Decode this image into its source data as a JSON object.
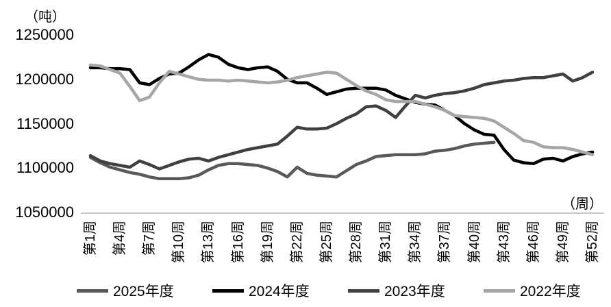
{
  "chart_data": {
    "type": "line",
    "title": "",
    "y_axis_unit_label": "（吨）",
    "x_axis_unit_label": "（周）",
    "y_ticks": [
      1050000,
      1100000,
      1150000,
      1200000,
      1250000
    ],
    "ylim": [
      1050000,
      1250000
    ],
    "weeks_total": 52,
    "x_tick_weeks": [
      1,
      4,
      7,
      10,
      13,
      16,
      19,
      22,
      25,
      28,
      31,
      34,
      37,
      40,
      43,
      46,
      49,
      52
    ],
    "x_tick_labels": [
      "第1周",
      "第4周",
      "第7周",
      "第10周",
      "第13周",
      "第16周",
      "第19周",
      "第22周",
      "第25周",
      "第28周",
      "第31周",
      "第34周",
      "第37周",
      "第40周",
      "第43周",
      "第46周",
      "第49周",
      "第52周"
    ],
    "grid": false,
    "legend_position": "bottom",
    "series": [
      {
        "name": "2025年度",
        "color": "#595959",
        "start_week": 1,
        "values": [
          1112000,
          1106000,
          1101000,
          1098000,
          1095000,
          1093000,
          1090000,
          1088000,
          1088000,
          1088000,
          1089000,
          1092000,
          1098000,
          1103000,
          1105000,
          1105000,
          1104000,
          1103000,
          1100000,
          1096000,
          1090000,
          1101000,
          1094000,
          1092000,
          1091000,
          1090000,
          1097000,
          1104000,
          1108000,
          1113000,
          1114000,
          1115000,
          1115000,
          1115000,
          1116000,
          1119000,
          1120000,
          1122000,
          1125000,
          1127000,
          1128000,
          1129000
        ]
      },
      {
        "name": "2024年度",
        "color": "#000000",
        "start_week": 1,
        "values": [
          1213000,
          1213000,
          1212000,
          1212000,
          1211000,
          1196000,
          1194000,
          1201000,
          1206000,
          1207000,
          1214000,
          1222000,
          1228000,
          1225000,
          1217000,
          1213000,
          1211000,
          1213000,
          1214000,
          1209000,
          1200000,
          1196000,
          1196000,
          1190000,
          1183000,
          1186000,
          1189000,
          1190000,
          1190000,
          1190000,
          1188000,
          1182000,
          1178000,
          1174000,
          1172000,
          1171000,
          1165000,
          1159000,
          1150000,
          1143000,
          1138000,
          1137000,
          1121000,
          1109000,
          1106000,
          1105000,
          1110000,
          1111000,
          1108000,
          1113000,
          1116000,
          1118000
        ]
      },
      {
        "name": "2023年度",
        "color": "#404040",
        "start_week": 1,
        "values": [
          1114000,
          1108000,
          1105000,
          1103000,
          1101000,
          1108000,
          1104000,
          1099000,
          1103000,
          1107000,
          1110000,
          1111000,
          1108000,
          1112000,
          1115000,
          1118000,
          1121000,
          1123000,
          1125000,
          1127000,
          1136000,
          1146000,
          1144000,
          1144000,
          1145000,
          1150000,
          1156000,
          1161000,
          1169000,
          1170000,
          1165000,
          1157000,
          1170000,
          1182000,
          1179000,
          1182000,
          1184000,
          1185000,
          1187000,
          1190000,
          1194000,
          1196000,
          1198000,
          1199000,
          1201000,
          1202000,
          1202000,
          1204000,
          1206000,
          1198000,
          1202000,
          1208000
        ]
      },
      {
        "name": "2022年度",
        "color": "#a6a6a6",
        "start_week": 1,
        "values": [
          1216000,
          1215000,
          1211000,
          1207000,
          1192000,
          1176000,
          1180000,
          1196000,
          1209000,
          1206000,
          1203000,
          1200000,
          1199000,
          1199000,
          1198000,
          1199000,
          1198000,
          1197000,
          1196000,
          1197000,
          1199000,
          1202000,
          1204000,
          1206000,
          1208000,
          1207000,
          1200000,
          1193000,
          1187000,
          1183000,
          1177000,
          1175000,
          1175000,
          1175000,
          1172000,
          1169000,
          1165000,
          1159000,
          1158000,
          1157000,
          1156000,
          1153000,
          1146000,
          1139000,
          1131000,
          1129000,
          1124000,
          1123000,
          1123000,
          1121000,
          1118000,
          1115000
        ]
      }
    ],
    "axis_line_color": "#b7b7b7"
  }
}
